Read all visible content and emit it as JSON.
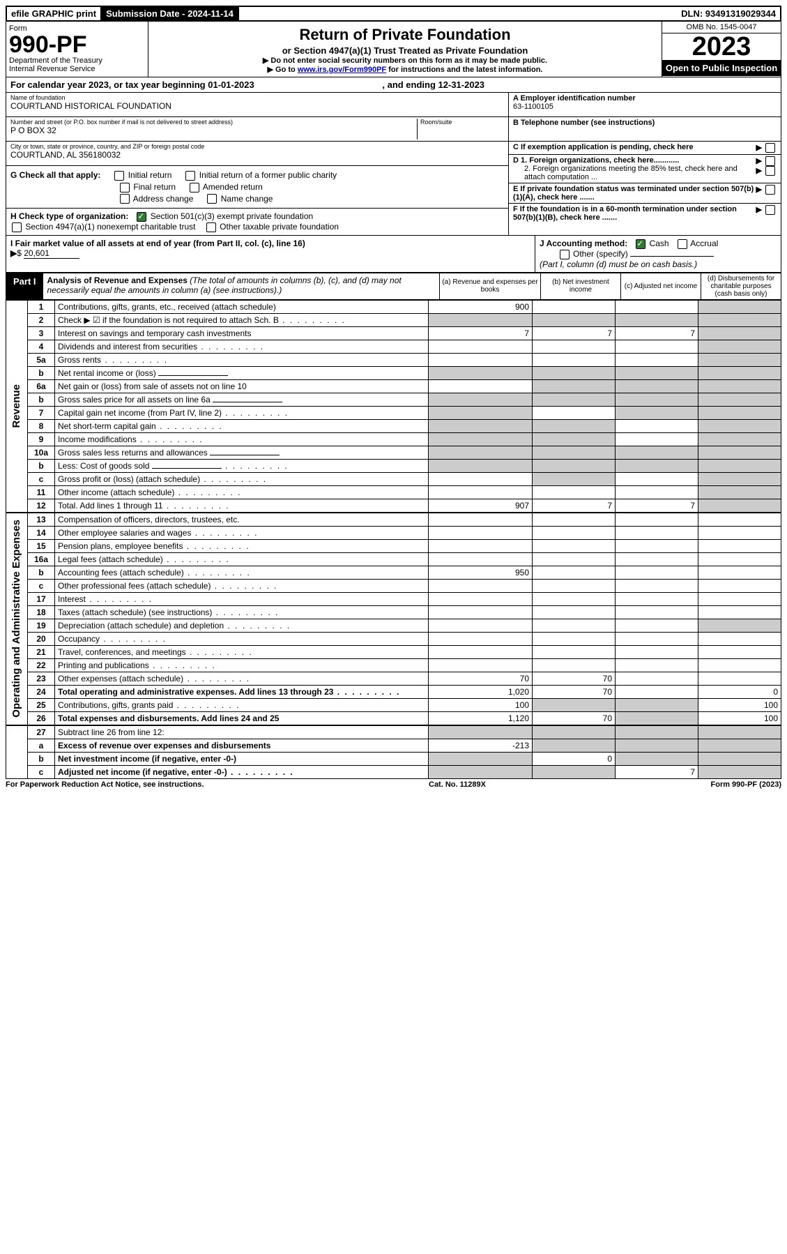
{
  "top": {
    "efile": "efile GRAPHIC print",
    "sub_label": "Submission Date - 2024-11-14",
    "dln": "DLN: 93491319029344"
  },
  "header": {
    "form_label": "Form",
    "form_no": "990-PF",
    "dept": "Department of the Treasury",
    "irs": "Internal Revenue Service",
    "title": "Return of Private Foundation",
    "subtitle": "or Section 4947(a)(1) Trust Treated as Private Foundation",
    "note1": "▶ Do not enter social security numbers on this form as it may be made public.",
    "note2_pre": "▶ Go to ",
    "note2_link": "www.irs.gov/Form990PF",
    "note2_post": " for instructions and the latest information.",
    "omb": "OMB No. 1545-0047",
    "year": "2023",
    "open": "Open to Public Inspection"
  },
  "calyear": {
    "text_pre": "For calendar year 2023, or tax year beginning ",
    "begin": "01-01-2023",
    "mid": " , and ending ",
    "end": "12-31-2023"
  },
  "entity": {
    "name_label": "Name of foundation",
    "name": "COURTLAND HISTORICAL FOUNDATION",
    "addr_label": "Number and street (or P.O. box number if mail is not delivered to street address)",
    "addr": "P O BOX 32",
    "room_label": "Room/suite",
    "city_label": "City or town, state or province, country, and ZIP or foreign postal code",
    "city": "COURTLAND, AL  356180032",
    "a_label": "A Employer identification number",
    "ein": "63-1100105",
    "b_label": "B Telephone number (see instructions)",
    "c_label": "C If exemption application is pending, check here",
    "d1": "D 1. Foreign organizations, check here............",
    "d2": "2. Foreign organizations meeting the 85% test, check here and attach computation ...",
    "e": "E  If private foundation status was terminated under section 507(b)(1)(A), check here .......",
    "f": "F  If the foundation is in a 60-month termination under section 507(b)(1)(B), check here ......."
  },
  "g": {
    "label": "G Check all that apply:",
    "opts": [
      "Initial return",
      "Initial return of a former public charity",
      "Final return",
      "Amended return",
      "Address change",
      "Name change"
    ]
  },
  "h": {
    "label": "H Check type of organization:",
    "opt1": "Section 501(c)(3) exempt private foundation",
    "opt2": "Section 4947(a)(1) nonexempt charitable trust",
    "opt3": "Other taxable private foundation"
  },
  "i": {
    "label": "I Fair market value of all assets at end of year (from Part II, col. (c), line 16)",
    "val": "20,601"
  },
  "j": {
    "label": "J Accounting method:",
    "cash": "Cash",
    "accrual": "Accrual",
    "other": "Other (specify)",
    "note": "(Part I, column (d) must be on cash basis.)"
  },
  "part1": {
    "label": "Part I",
    "title": "Analysis of Revenue and Expenses",
    "subtitle": "(The total of amounts in columns (b), (c), and (d) may not necessarily equal the amounts in column (a) (see instructions).)",
    "cols": {
      "a": "(a) Revenue and expenses per books",
      "b": "(b) Net investment income",
      "c": "(c) Adjusted net income",
      "d": "(d) Disbursements for charitable purposes (cash basis only)"
    }
  },
  "sections": {
    "revenue": "Revenue",
    "expenses": "Operating and Administrative Expenses"
  },
  "rows": [
    {
      "n": "1",
      "t": "Contributions, gifts, grants, etc., received (attach schedule)",
      "a": "900",
      "shade_d": true
    },
    {
      "n": "2",
      "t": "Check ▶ ☑ if the foundation is not required to attach Sch. B",
      "dots": true,
      "all_shade": true
    },
    {
      "n": "3",
      "t": "Interest on savings and temporary cash investments",
      "a": "7",
      "b": "7",
      "c": "7",
      "shade_d": true
    },
    {
      "n": "4",
      "t": "Dividends and interest from securities",
      "dots": true,
      "shade_d": true
    },
    {
      "n": "5a",
      "t": "Gross rents",
      "dots": true,
      "shade_d": true
    },
    {
      "n": "b",
      "t": "Net rental income or (loss)",
      "under": true,
      "all_shade": true
    },
    {
      "n": "6a",
      "t": "Net gain or (loss) from sale of assets not on line 10",
      "shade_bcd": true
    },
    {
      "n": "b",
      "t": "Gross sales price for all assets on line 6a",
      "under": true,
      "all_shade": true
    },
    {
      "n": "7",
      "t": "Capital gain net income (from Part IV, line 2)",
      "dots": true,
      "shade_acd": true
    },
    {
      "n": "8",
      "t": "Net short-term capital gain",
      "dots": true,
      "shade_abd": true
    },
    {
      "n": "9",
      "t": "Income modifications",
      "dots": true,
      "shade_abd": true
    },
    {
      "n": "10a",
      "t": "Gross sales less returns and allowances",
      "under": true,
      "all_shade": true
    },
    {
      "n": "b",
      "t": "Less: Cost of goods sold",
      "dots": true,
      "under": true,
      "all_shade": true
    },
    {
      "n": "c",
      "t": "Gross profit or (loss) (attach schedule)",
      "dots": true,
      "shade_bd": true
    },
    {
      "n": "11",
      "t": "Other income (attach schedule)",
      "dots": true,
      "shade_d": true
    },
    {
      "n": "12",
      "t": "Total. Add lines 1 through 11",
      "dots": true,
      "b": true,
      "a": "907",
      "bv": "7",
      "c": "7",
      "shade_d": true
    }
  ],
  "exp_rows": [
    {
      "n": "13",
      "t": "Compensation of officers, directors, trustees, etc."
    },
    {
      "n": "14",
      "t": "Other employee salaries and wages",
      "dots": true
    },
    {
      "n": "15",
      "t": "Pension plans, employee benefits",
      "dots": true
    },
    {
      "n": "16a",
      "t": "Legal fees (attach schedule)",
      "dots": true
    },
    {
      "n": "b",
      "t": "Accounting fees (attach schedule)",
      "dots": true,
      "a": "950"
    },
    {
      "n": "c",
      "t": "Other professional fees (attach schedule)",
      "dots": true
    },
    {
      "n": "17",
      "t": "Interest",
      "dots": true
    },
    {
      "n": "18",
      "t": "Taxes (attach schedule) (see instructions)",
      "dots": true
    },
    {
      "n": "19",
      "t": "Depreciation (attach schedule) and depletion",
      "dots": true,
      "shade_d": true
    },
    {
      "n": "20",
      "t": "Occupancy",
      "dots": true
    },
    {
      "n": "21",
      "t": "Travel, conferences, and meetings",
      "dots": true
    },
    {
      "n": "22",
      "t": "Printing and publications",
      "dots": true
    },
    {
      "n": "23",
      "t": "Other expenses (attach schedule)",
      "dots": true,
      "a": "70",
      "b": "70"
    },
    {
      "n": "24",
      "t": "Total operating and administrative expenses. Add lines 13 through 23",
      "dots": true,
      "bold": true,
      "a": "1,020",
      "b": "70",
      "d": "0"
    },
    {
      "n": "25",
      "t": "Contributions, gifts, grants paid",
      "dots": true,
      "a": "100",
      "shade_bc": true,
      "d": "100"
    },
    {
      "n": "26",
      "t": "Total expenses and disbursements. Add lines 24 and 25",
      "bold": true,
      "a": "1,120",
      "b": "70",
      "shade_c": true,
      "d": "100"
    }
  ],
  "bottom_rows": [
    {
      "n": "27",
      "t": "Subtract line 26 from line 12:",
      "all_shade": true
    },
    {
      "n": "a",
      "t": "Excess of revenue over expenses and disbursements",
      "bold": true,
      "a": "-213",
      "shade_bcd": true
    },
    {
      "n": "b",
      "t": "Net investment income (if negative, enter -0-)",
      "bold": true,
      "b": "0",
      "shade_acd": true
    },
    {
      "n": "c",
      "t": "Adjusted net income (if negative, enter -0-)",
      "bold": true,
      "dots": true,
      "c": "7",
      "shade_abd": true
    }
  ],
  "footer": {
    "left": "For Paperwork Reduction Act Notice, see instructions.",
    "mid": "Cat. No. 11289X",
    "right": "Form 990-PF (2023)"
  }
}
